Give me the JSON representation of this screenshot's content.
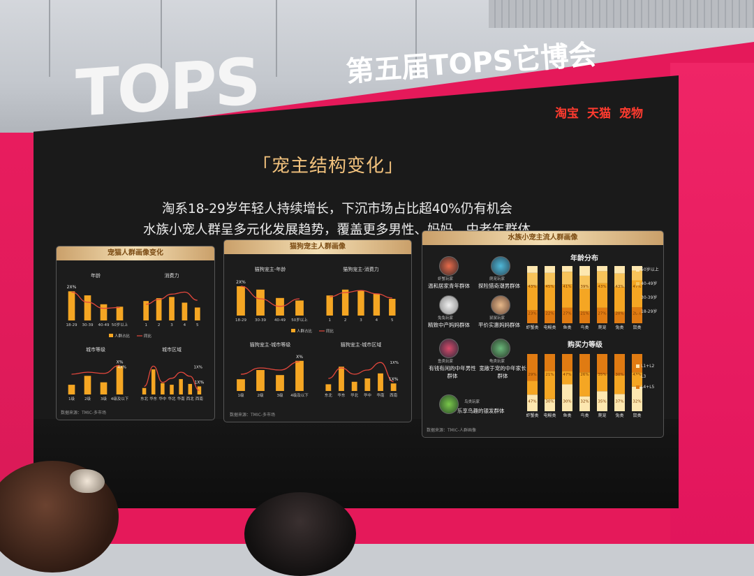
{
  "event": {
    "logo": "TOPS",
    "title": "第五届TOPS它博会"
  },
  "brands": [
    "淘宝",
    "天猫",
    "宠物"
  ],
  "slide": {
    "section_title": "「宠主结构变化」",
    "headline_1": "淘系18-29岁年轻人持续增长，下沉市场占比超40%仍有机会",
    "headline_2": "水族小宠人群呈多元化发展趋势，覆盖更多男性、妈妈、中老年群体"
  },
  "panel_1": {
    "title": "宠猫人群画像变化",
    "charts": [
      {
        "title": "年龄",
        "type": "bar+line",
        "categories": [
          "18-29",
          "30-39",
          "40-49",
          "50岁以上"
        ],
        "values": [
          72,
          62,
          40,
          34
        ],
        "line": [
          70,
          45,
          30,
          32
        ],
        "annotation": "2X%"
      },
      {
        "title": "消费力",
        "type": "bar+line",
        "categories": [
          "1",
          "2",
          "3",
          "4",
          "5"
        ],
        "values": [
          48,
          55,
          58,
          44,
          32
        ],
        "line": [
          40,
          52,
          65,
          70,
          50
        ]
      },
      {
        "title": "城市等级",
        "type": "bar+line",
        "categories": [
          "1级",
          "2级",
          "3级",
          "4级及以下"
        ],
        "values": [
          24,
          46,
          30,
          70
        ],
        "line": [
          50,
          55,
          52,
          72
        ],
        "annotation": "X%",
        "annotation_2": "4X%"
      },
      {
        "title": "城市区域",
        "type": "bar+line",
        "categories": [
          "东北",
          "华东",
          "华中",
          "华北",
          "华南",
          "西北",
          "西南"
        ],
        "values": [
          16,
          62,
          28,
          24,
          38,
          26,
          20
        ],
        "line": [
          20,
          70,
          30,
          40,
          55,
          45,
          10
        ],
        "annotation": "1X%",
        "annotation_2": "1X%"
      }
    ],
    "legend": [
      "人群占比",
      "同比"
    ],
    "source": "数据来源：TMIC-多市场"
  },
  "panel_2": {
    "title": "猫狗宠主人群画像",
    "charts": [
      {
        "title": "猫狗宠主-年龄",
        "type": "bar+line",
        "categories": [
          "18-29",
          "30-39",
          "40-49",
          "50岁以上"
        ],
        "values": [
          70,
          62,
          42,
          36
        ],
        "line": [
          70,
          40,
          22,
          40
        ],
        "annotation": "2X%"
      },
      {
        "title": "猫狗宠主-消费力",
        "type": "bar+line",
        "categories": [
          "1",
          "2",
          "3",
          "4",
          "5"
        ],
        "values": [
          48,
          62,
          60,
          52,
          40
        ],
        "line": [
          45,
          55,
          60,
          52,
          42
        ]
      },
      {
        "title": "猫狗宠主-城市等级",
        "type": "bar+line",
        "categories": [
          "1级",
          "2级",
          "3级",
          "4级及以下"
        ],
        "values": [
          28,
          50,
          38,
          72
        ],
        "line": [
          40,
          55,
          50,
          70
        ],
        "annotation": "X%"
      },
      {
        "title": "猫狗宠主-城市区域",
        "type": "bar+line",
        "categories": [
          "东北",
          "华东",
          "华北",
          "华中",
          "华南",
          "西南"
        ],
        "values": [
          16,
          58,
          22,
          30,
          42,
          18
        ],
        "line": [
          30,
          55,
          40,
          50,
          68,
          22
        ],
        "annotation": "1X%",
        "annotation_2": "1X%"
      }
    ],
    "legend": [
      "人群占比",
      "同比"
    ],
    "source": "数据来源：TMIC-多市场"
  },
  "panel_3": {
    "title": "水族小宠主流人群画像",
    "groups": [
      {
        "role": "虾蟹玩家",
        "label": "温和居家青年群体"
      },
      {
        "role": "爬宠玩家",
        "label": "探险猎奇潮男群体"
      },
      {
        "role": "兔兔玩家",
        "label": "精致中产妈妈群体"
      },
      {
        "role": "鼠鼠玩家",
        "label": "平价实惠妈妈群体"
      },
      {
        "role": "鱼类玩家",
        "label": "有钱有闲的中年男性群体"
      },
      {
        "role": "龟类玩家",
        "label": "宽敞于宠的中年家长群体"
      },
      {
        "role": "鸟类玩家",
        "label": "乐享鸟趣的银发群体"
      }
    ],
    "age_chart": {
      "title": "年龄分布",
      "type": "stacked-bar",
      "categories": [
        "虾蟹类",
        "电鳗类",
        "鱼类",
        "鸟类",
        "爬宠",
        "兔类",
        "鼠类"
      ],
      "series": [
        {
          "name": "18-29岁",
          "values": [
            23,
            22,
            27,
            21,
            27,
            20,
            28
          ]
        },
        {
          "name": "30-39岁",
          "values": [
            43,
            45,
            41,
            39,
            43,
            43,
            47
          ]
        },
        {
          "name": "40-49岁",
          "values": [
            22,
            21,
            22,
            23,
            21,
            24,
            17
          ]
        },
        {
          "name": "50岁以上",
          "values": [
            12,
            12,
            10,
            17,
            9,
            13,
            8
          ]
        }
      ],
      "labels": [
        "43%",
        "45%",
        "41%",
        "39%",
        "43%",
        "43%",
        "47%"
      ],
      "labels_bottom": [
        "23%",
        "22%",
        "27%",
        "21%",
        "27%",
        "20%",
        "28%"
      ]
    },
    "spend_chart": {
      "title": "购买力等级",
      "type": "stacked-bar",
      "categories": [
        "虾蟹类",
        "电鳗类",
        "鱼类",
        "鸟类",
        "爬宠",
        "兔类",
        "鼠类"
      ],
      "series": [
        {
          "name": "L1+L2",
          "values": [
            29,
            21,
            47,
            26,
            35,
            30,
            43
          ]
        },
        {
          "name": "L3",
          "values": [
            24,
            49,
            23,
            42,
            30,
            33,
            25
          ]
        },
        {
          "name": "L4+L5",
          "values": [
            47,
            30,
            30,
            32,
            35,
            37,
            32
          ]
        }
      ],
      "labels": [
        "29%",
        "21%",
        "47%",
        "26%",
        "35%",
        "30%",
        "43%"
      ],
      "labels_bottom": [
        "47%",
        "30%",
        "30%",
        "32%",
        "35%",
        "37%",
        "32%"
      ]
    },
    "source": "数据来源：TMIC-人群画像"
  },
  "colors": {
    "frame": "#e5195a",
    "bar": "#f5a623",
    "line": "#e3473c",
    "gold": "#f2c27d",
    "screen": "#1a1a1a"
  }
}
